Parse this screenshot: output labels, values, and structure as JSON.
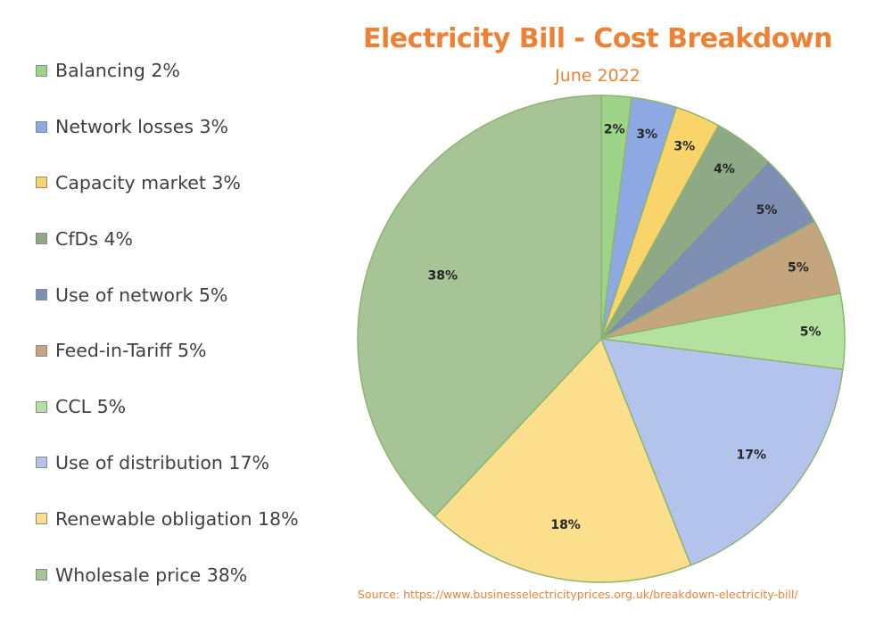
{
  "chart_data": {
    "type": "pie",
    "title": "Electricity Bill - Cost Breakdown",
    "subtitle": "June 2022",
    "legend_position": "left",
    "slices": [
      {
        "name": "Balancing",
        "value": 2,
        "label": "2%",
        "legend": "Balancing 2%",
        "color": "#9ed38a"
      },
      {
        "name": "Network losses",
        "value": 3,
        "label": "3%",
        "legend": "Network losses 3%",
        "color": "#8ea8e3"
      },
      {
        "name": "Capacity market",
        "value": 3,
        "label": "3%",
        "legend": "Capacity market 3%",
        "color": "#f9d46b"
      },
      {
        "name": "CfDs",
        "value": 4,
        "label": "4%",
        "legend": "CfDs 4%",
        "color": "#8fa886"
      },
      {
        "name": "Use of network",
        "value": 5,
        "label": "5%",
        "legend": "Use of network 5%",
        "color": "#7f8fb4"
      },
      {
        "name": "Feed-in-Tariff",
        "value": 5,
        "label": "5%",
        "legend": "Feed-in-Tariff 5%",
        "color": "#c4a57e"
      },
      {
        "name": "CCL",
        "value": 5,
        "label": "5%",
        "legend": "CCL 5%",
        "color": "#b5e1a0"
      },
      {
        "name": "Use of distribution",
        "value": 17,
        "label": "17%",
        "legend": "Use of distribution 17%",
        "color": "#b3c3ec"
      },
      {
        "name": "Renewable obligation",
        "value": 18,
        "label": "18%",
        "legend": "Renewable obligation 18%",
        "color": "#fbdf8c"
      },
      {
        "name": "Wholesale price",
        "value": 38,
        "label": "38%",
        "legend": "Wholesale price 38%",
        "color": "#a6c495"
      }
    ],
    "start_angle_deg": 0,
    "direction": "clockwise",
    "slice_border_color": "#8db56f"
  },
  "source": "Source: https://www.businesselectricityprices.org.uk/breakdown-electricity-bill/"
}
